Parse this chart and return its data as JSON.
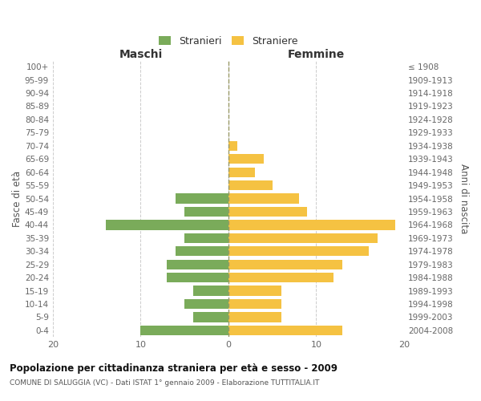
{
  "age_groups": [
    "0-4",
    "5-9",
    "10-14",
    "15-19",
    "20-24",
    "25-29",
    "30-34",
    "35-39",
    "40-44",
    "45-49",
    "50-54",
    "55-59",
    "60-64",
    "65-69",
    "70-74",
    "75-79",
    "80-84",
    "85-89",
    "90-94",
    "95-99",
    "100+"
  ],
  "birth_years": [
    "2004-2008",
    "1999-2003",
    "1994-1998",
    "1989-1993",
    "1984-1988",
    "1979-1983",
    "1974-1978",
    "1969-1973",
    "1964-1968",
    "1959-1963",
    "1954-1958",
    "1949-1953",
    "1944-1948",
    "1939-1943",
    "1934-1938",
    "1929-1933",
    "1924-1928",
    "1919-1923",
    "1914-1918",
    "1909-1913",
    "≤ 1908"
  ],
  "males": [
    10,
    4,
    5,
    4,
    7,
    7,
    6,
    5,
    14,
    5,
    6,
    0,
    0,
    0,
    0,
    0,
    0,
    0,
    0,
    0,
    0
  ],
  "females": [
    13,
    6,
    6,
    6,
    12,
    13,
    16,
    17,
    19,
    9,
    8,
    5,
    3,
    4,
    1,
    0,
    0,
    0,
    0,
    0,
    0
  ],
  "male_color": "#7aab5a",
  "female_color": "#f5c242",
  "grid_color": "#cccccc",
  "center_line_color": "#999966",
  "background_color": "#ffffff",
  "title": "Popolazione per cittadinanza straniera per età e sesso - 2009",
  "subtitle": "COMUNE DI SALUGGIA (VC) - Dati ISTAT 1° gennaio 2009 - Elaborazione TUTTITALIA.IT",
  "xlabel_left": "Maschi",
  "xlabel_right": "Femmine",
  "ylabel_left": "Fasce di età",
  "ylabel_right": "Anni di nascita",
  "legend_male": "Stranieri",
  "legend_female": "Straniere",
  "xlim": 20,
  "bar_height": 0.75
}
